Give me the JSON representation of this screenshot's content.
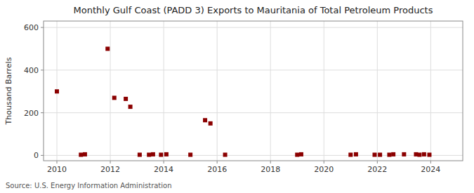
{
  "chart_data": {
    "type": "scatter",
    "title": "Monthly Gulf Coast (PADD 3) Exports to Mauritania of Total Petroleum Products",
    "ylabel": "Thousand Barrels",
    "source": "Source: U.S. Energy Information Administration",
    "color": "#8b0000",
    "marker": "square",
    "grid": true,
    "xlim": [
      2009.5,
      2025.2
    ],
    "ylim": [
      -25,
      630
    ],
    "xticks": [
      2010,
      2012,
      2014,
      2016,
      2018,
      2020,
      2022,
      2024
    ],
    "yticks": [
      0,
      200,
      400,
      600
    ],
    "x": [
      2010.0,
      2010.9,
      2011.05,
      2011.9,
      2012.15,
      2012.58,
      2012.75,
      2013.1,
      2013.45,
      2013.6,
      2013.9,
      2014.1,
      2015.0,
      2015.55,
      2015.75,
      2016.3,
      2019.0,
      2019.15,
      2021.0,
      2021.2,
      2021.9,
      2022.1,
      2022.45,
      2022.6,
      2023.0,
      2023.45,
      2023.58,
      2023.75,
      2023.95
    ],
    "values": [
      300,
      3,
      5,
      500,
      270,
      265,
      228,
      3,
      3,
      5,
      3,
      5,
      3,
      165,
      150,
      3,
      3,
      5,
      3,
      5,
      3,
      3,
      3,
      5,
      5,
      5,
      3,
      5,
      3
    ]
  }
}
